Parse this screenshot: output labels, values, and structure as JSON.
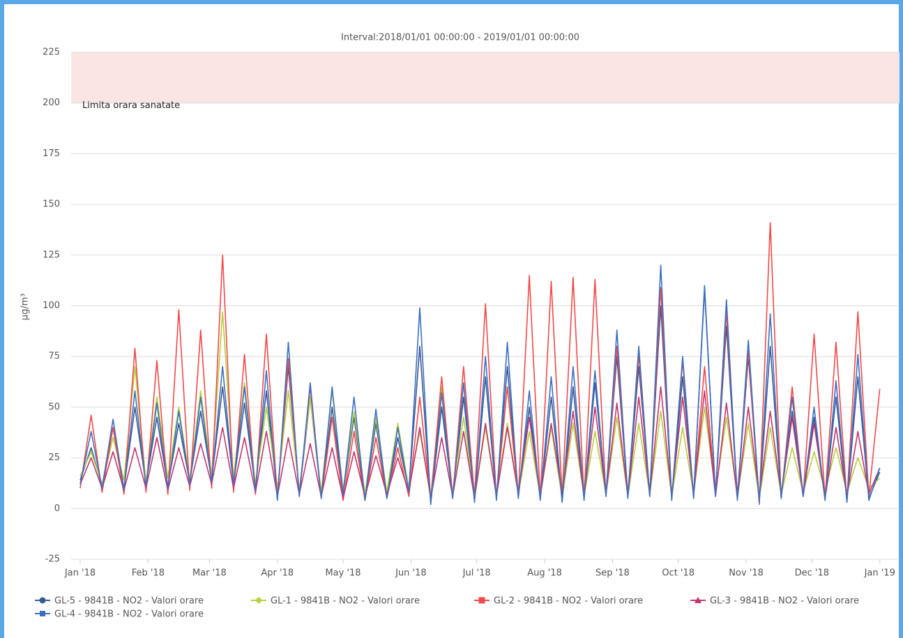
{
  "chart_data": {
    "type": "line",
    "title": "Interval:2018/01/01 00:00:00 - 2019/01/01 00:00:00",
    "y_label": "µg/m³",
    "x": [
      0,
      5,
      10,
      15,
      20,
      25,
      30,
      35,
      40,
      45,
      50,
      55,
      60,
      65,
      70,
      75,
      80,
      85,
      90,
      95,
      100,
      105,
      110,
      115,
      120,
      125,
      130,
      135,
      140,
      145,
      150,
      155,
      160,
      165,
      170,
      175,
      180,
      185,
      190,
      195,
      200,
      205,
      210,
      215,
      220,
      225,
      230,
      235,
      240,
      245,
      250,
      255,
      260,
      265,
      270,
      275,
      280,
      285,
      290,
      295,
      300,
      305,
      310,
      315,
      320,
      325,
      330,
      335,
      340,
      345,
      350,
      355,
      360,
      365
    ],
    "xlim": [
      0,
      374
    ],
    "xticks": [
      {
        "value": 0,
        "label": "Jan '18"
      },
      {
        "value": 31,
        "label": "Feb '18"
      },
      {
        "value": 59,
        "label": "Mar '18"
      },
      {
        "value": 90,
        "label": "Apr '18"
      },
      {
        "value": 120,
        "label": "May '18"
      },
      {
        "value": 151,
        "label": "Jun '18"
      },
      {
        "value": 181,
        "label": "Jul '18"
      },
      {
        "value": 212,
        "label": "Aug '18"
      },
      {
        "value": 243,
        "label": "Sep '18"
      },
      {
        "value": 273,
        "label": "Oct '18"
      },
      {
        "value": 304,
        "label": "Nov '18"
      },
      {
        "value": 334,
        "label": "Dec '18"
      },
      {
        "value": 365,
        "label": "Jan '19"
      }
    ],
    "ylim": [
      -25,
      225
    ],
    "yticks": [
      -25,
      0,
      25,
      50,
      75,
      100,
      125,
      150,
      175,
      200,
      225
    ],
    "grid": true,
    "plot_band": {
      "from": 200,
      "to": 225,
      "label": "Limita orara sanatate",
      "color": "#fbe4e4"
    },
    "legend": "bottom-left",
    "series": [
      {
        "name": "GL-5 - 9841B - NO2 - Valori orare",
        "color": "#3a5894",
        "marker": "circle",
        "values": [
          14,
          30,
          11,
          40,
          10,
          50,
          12,
          45,
          11,
          42,
          13,
          48,
          14,
          60,
          12,
          52,
          10,
          58,
          6,
          70,
          7,
          55,
          6,
          50,
          8,
          45,
          5,
          42,
          6,
          35,
          9,
          80,
          3,
          50,
          6,
          55,
          4,
          65,
          5,
          70,
          6,
          50,
          5,
          55,
          4,
          60,
          5,
          62,
          7,
          75,
          6,
          70,
          7,
          100,
          5,
          65,
          6,
          108,
          7,
          90,
          5,
          75,
          4,
          80,
          6,
          48,
          7,
          45,
          5,
          55,
          4,
          65,
          5,
          18
        ]
      },
      {
        "name": "GL-1 - 9841B - NO2 - Valori orare",
        "color": "#b4d03a",
        "marker": "diamond",
        "values": [
          16,
          28,
          12,
          35,
          14,
          70,
          13,
          55,
          15,
          50,
          14,
          58,
          16,
          97,
          15,
          62,
          12,
          50,
          10,
          58,
          9,
          55,
          8,
          58,
          9,
          48,
          7,
          45,
          8,
          42,
          10,
          38,
          6,
          60,
          8,
          45,
          5,
          40,
          6,
          42,
          7,
          38,
          6,
          40,
          5,
          42,
          6,
          38,
          7,
          45,
          6,
          42,
          7,
          48,
          6,
          40,
          7,
          50,
          8,
          45,
          6,
          42,
          5,
          40,
          7,
          30,
          8,
          28,
          9,
          30,
          8,
          25,
          10,
          15
        ]
      },
      {
        "name": "GL-2 - 9841B - NO2 - Valori orare",
        "color": "#f24848",
        "marker": "square",
        "values": [
          10,
          46,
          8,
          40,
          7,
          79,
          8,
          73,
          7,
          98,
          9,
          88,
          10,
          125,
          8,
          76,
          7,
          86,
          5,
          74,
          6,
          60,
          5,
          45,
          4,
          38,
          4,
          35,
          5,
          30,
          6,
          55,
          4,
          65,
          5,
          70,
          6,
          101,
          5,
          60,
          6,
          115,
          5,
          112,
          6,
          114,
          5,
          113,
          6,
          80,
          7,
          76,
          6,
          109,
          5,
          73,
          6,
          70,
          7,
          97,
          6,
          78,
          2,
          141,
          5,
          60,
          6,
          86,
          5,
          82,
          4,
          97,
          6,
          59
        ]
      },
      {
        "name": "GL-3 - 9841B - NO2 - Valori orare",
        "color": "#c2356e",
        "marker": "triangle",
        "values": [
          12,
          25,
          10,
          28,
          9,
          30,
          10,
          35,
          9,
          30,
          11,
          32,
          12,
          40,
          10,
          35,
          8,
          38,
          6,
          35,
          7,
          32,
          6,
          30,
          5,
          28,
          6,
          26,
          7,
          25,
          8,
          40,
          5,
          35,
          6,
          38,
          5,
          42,
          6,
          40,
          7,
          45,
          6,
          42,
          7,
          48,
          6,
          50,
          7,
          52,
          6,
          55,
          7,
          60,
          6,
          55,
          7,
          58,
          6,
          52,
          5,
          50,
          6,
          48,
          7,
          45,
          6,
          42,
          5,
          40,
          6,
          38,
          7,
          20
        ]
      },
      {
        "name": "GL-4 - 9841B - NO2 - Valori orare",
        "color": "#3b6fbf",
        "marker": "cross",
        "values": [
          12,
          38,
          10,
          44,
          9,
          58,
          11,
          52,
          10,
          48,
          12,
          55,
          13,
          70,
          12,
          60,
          9,
          68,
          4,
          82,
          6,
          62,
          5,
          60,
          7,
          55,
          4,
          49,
          5,
          40,
          8,
          99,
          2,
          57,
          5,
          62,
          3,
          75,
          4,
          82,
          5,
          58,
          4,
          65,
          3,
          70,
          4,
          68,
          6,
          88,
          5,
          80,
          6,
          120,
          4,
          75,
          5,
          110,
          6,
          103,
          4,
          83,
          3,
          96,
          5,
          55,
          6,
          50,
          4,
          63,
          3,
          76,
          4,
          20
        ]
      }
    ]
  }
}
